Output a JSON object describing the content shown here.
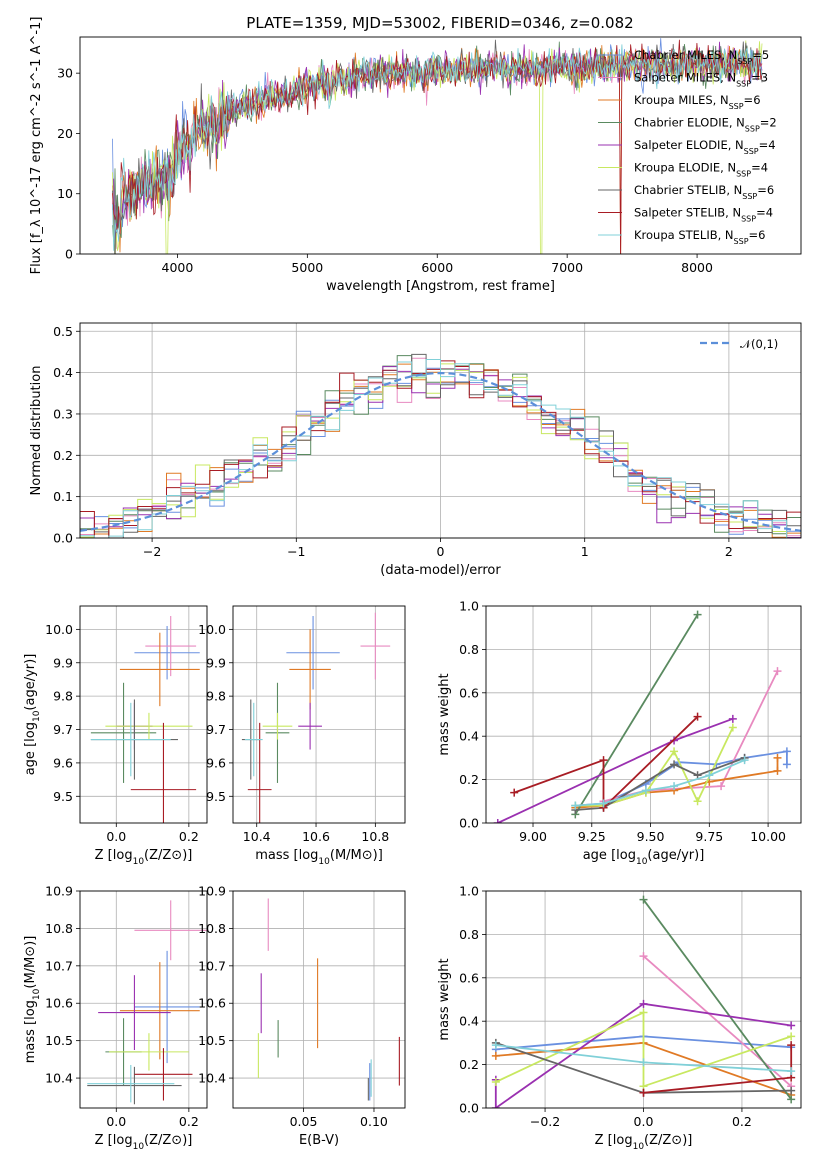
{
  "title": "PLATE=1359, MJD=53002, FIBERID=0346, z=0.082",
  "colors": {
    "Chabrier MILES": "#6a90e0",
    "Salpeter MILES": "#e88ac0",
    "Kroupa MILES": "#e07a25",
    "Chabrier ELODIE": "#5a8a60",
    "Salpeter ELODIE": "#9a30b0",
    "Kroupa ELODIE": "#c8e860",
    "Chabrier STELIB": "#666666",
    "Salpeter STELIB": "#a81c24",
    "Kroupa STELIB": "#80d0d8",
    "normal": "#5b8fd9"
  },
  "chart_data": [
    {
      "id": "spectrum",
      "type": "line",
      "xlabel": "wavelength [Angstrom, rest frame]",
      "ylabel": "Flux [f_λ 10^-17 erg cm^-2 s^-1 A^-1]",
      "xlim": [
        3250,
        8800
      ],
      "ylim": [
        0,
        36
      ],
      "xticks": [
        "4000",
        "5000",
        "6000",
        "7000",
        "8000"
      ],
      "yticks": [
        "0",
        "10",
        "20",
        "30"
      ],
      "legend_position": "top-right",
      "series": [
        {
          "name": "Chabrier MILES",
          "nssp": "5"
        },
        {
          "name": "Salpeter MILES",
          "nssp": "3"
        },
        {
          "name": "Kroupa MILES",
          "nssp": "6"
        },
        {
          "name": "Chabrier ELODIE",
          "nssp": "2"
        },
        {
          "name": "Salpeter ELODIE",
          "nssp": "4"
        },
        {
          "name": "Kroupa ELODIE",
          "nssp": "4"
        },
        {
          "name": "Chabrier STELIB",
          "nssp": "6"
        },
        {
          "name": "Salpeter STELIB",
          "nssp": "4"
        },
        {
          "name": "Kroupa STELIB",
          "nssp": "6"
        }
      ],
      "continuum": {
        "x": [
          3500,
          3700,
          3900,
          4000,
          4200,
          4400,
          4600,
          4800,
          5000,
          5200,
          5400,
          5600,
          5800,
          6000,
          6200,
          6400,
          6600,
          6800,
          7000,
          7200,
          7400,
          7600,
          7800,
          8000,
          8200,
          8400
        ],
        "y": [
          9,
          11,
          13,
          17,
          21,
          23.5,
          25,
          26.5,
          27.5,
          29,
          29.5,
          30,
          30,
          30.5,
          30.5,
          31,
          30.5,
          31,
          31,
          31,
          31.5,
          31.5,
          31.5,
          31.5,
          31.5,
          31.5
        ]
      }
    },
    {
      "id": "residuals",
      "type": "histogram",
      "xlabel": "(data-model)/error",
      "ylabel": "Normed distribution",
      "xlim": [
        -2.5,
        2.5
      ],
      "ylim": [
        0,
        0.52
      ],
      "xticks": [
        "−2",
        "−1",
        "0",
        "1",
        "2"
      ],
      "yticks": [
        "0.0",
        "0.1",
        "0.2",
        "0.3",
        "0.4",
        "0.5"
      ],
      "bin_width": 0.1,
      "reference": {
        "name": "𝒩(0,1)",
        "mu": 0,
        "sigma": 1
      },
      "legend_position": "top-right"
    },
    {
      "id": "age_vs_Z",
      "type": "errorbar",
      "xlabel": "Z [log10(Z/Z⊙)]",
      "ylabel": "age  [log10(age/yr)]",
      "xlim": [
        -0.1,
        0.25
      ],
      "ylim": [
        9.42,
        10.07
      ],
      "xticks": [
        "0.0",
        "0.2"
      ],
      "yticks": [
        "9.5",
        "9.6",
        "9.7",
        "9.8",
        "9.9",
        "10.0"
      ],
      "points": [
        {
          "model": "Chabrier MILES",
          "x": 0.14,
          "xerr": 0.09,
          "y": 9.93,
          "yerr": 0.08
        },
        {
          "model": "Salpeter MILES",
          "x": 0.15,
          "xerr": 0.07,
          "y": 9.95,
          "yerr": 0.09
        },
        {
          "model": "Kroupa MILES",
          "x": 0.12,
          "xerr": 0.11,
          "y": 9.88,
          "yerr": 0.11
        },
        {
          "model": "Chabrier ELODIE",
          "x": 0.02,
          "xerr": 0.09,
          "y": 9.69,
          "yerr": 0.15
        },
        {
          "model": "Salpeter ELODIE",
          "x": 0.05,
          "xerr": 0.05,
          "y": 9.71,
          "yerr": 0.07
        },
        {
          "model": "Kroupa ELODIE",
          "x": 0.09,
          "xerr": 0.12,
          "y": 9.71,
          "yerr": 0.04
        },
        {
          "model": "Chabrier STELIB",
          "x": 0.05,
          "xerr": 0.12,
          "y": 9.67,
          "yerr": 0.12
        },
        {
          "model": "Salpeter STELIB",
          "x": 0.13,
          "xerr": 0.09,
          "y": 9.52,
          "yerr": 0.2
        },
        {
          "model": "Kroupa STELIB",
          "x": 0.04,
          "xerr": 0.11,
          "y": 9.67,
          "yerr": 0.11
        }
      ]
    },
    {
      "id": "age_vs_mass",
      "type": "errorbar",
      "xlabel": "mass [log10(M/M⊙)]",
      "ylabel": "",
      "xlim": [
        10.32,
        10.9
      ],
      "ylim": [
        9.42,
        10.07
      ],
      "xticks": [
        "10.4",
        "10.6",
        "10.8"
      ],
      "yticks": [
        "9.5",
        "9.6",
        "9.7",
        "9.8",
        "9.9",
        "10.0"
      ],
      "points": [
        {
          "model": "Chabrier MILES",
          "x": 10.59,
          "xerr": 0.09,
          "y": 9.93,
          "yerr": 0.11
        },
        {
          "model": "Salpeter MILES",
          "x": 10.8,
          "xerr": 0.05,
          "y": 9.95,
          "yerr": 0.1
        },
        {
          "model": "Kroupa MILES",
          "x": 10.58,
          "xerr": 0.07,
          "y": 9.88,
          "yerr": 0.12
        },
        {
          "model": "Chabrier ELODIE",
          "x": 10.47,
          "xerr": 0.04,
          "y": 9.69,
          "yerr": 0.15
        },
        {
          "model": "Salpeter ELODIE",
          "x": 10.58,
          "xerr": 0.04,
          "y": 9.71,
          "yerr": 0.07
        },
        {
          "model": "Kroupa ELODIE",
          "x": 10.47,
          "xerr": 0.05,
          "y": 9.71,
          "yerr": 0.04
        },
        {
          "model": "Chabrier STELIB",
          "x": 10.38,
          "xerr": 0.03,
          "y": 9.67,
          "yerr": 0.12
        },
        {
          "model": "Salpeter STELIB",
          "x": 10.41,
          "xerr": 0.04,
          "y": 9.52,
          "yerr": 0.2
        },
        {
          "model": "Kroupa STELIB",
          "x": 10.39,
          "xerr": 0.03,
          "y": 9.67,
          "yerr": 0.11
        }
      ]
    },
    {
      "id": "weight_vs_age",
      "type": "line",
      "xlabel": "age  [log10(age/yr)]",
      "ylabel": "mass weight",
      "xlim": [
        8.8,
        10.14
      ],
      "ylim": [
        0,
        1
      ],
      "xticks": [
        "9.00",
        "9.25",
        "9.50",
        "9.75",
        "10.00"
      ],
      "yticks": [
        "0.0",
        "0.2",
        "0.4",
        "0.6",
        "0.8",
        "1.0"
      ],
      "series": [
        {
          "model": "Chabrier MILES",
          "x": [
            9.18,
            9.3,
            9.48,
            9.62,
            9.78,
            9.9,
            10.08,
            10.08
          ],
          "y": [
            0.08,
            0.09,
            0.18,
            0.28,
            0.27,
            0.3,
            0.33,
            0.27
          ]
        },
        {
          "model": "Salpeter MILES",
          "x": [
            9.3,
            9.48,
            9.8,
            10.04
          ],
          "y": [
            0.1,
            0.15,
            0.17,
            0.7
          ]
        },
        {
          "model": "Kroupa MILES",
          "x": [
            9.18,
            9.3,
            9.48,
            9.6,
            9.75,
            10.04,
            10.04
          ],
          "y": [
            0.07,
            0.08,
            0.14,
            0.15,
            0.19,
            0.24,
            0.3
          ]
        },
        {
          "model": "Chabrier ELODIE",
          "x": [
            9.18,
            9.7
          ],
          "y": [
            0.04,
            0.96
          ]
        },
        {
          "model": "Salpeter ELODIE",
          "x": [
            8.85,
            9.6,
            9.85
          ],
          "y": [
            0.0,
            0.38,
            0.48
          ]
        },
        {
          "model": "Kroupa ELODIE",
          "x": [
            9.18,
            9.3,
            9.48,
            9.6,
            9.7,
            9.85
          ],
          "y": [
            0.08,
            0.08,
            0.14,
            0.33,
            0.1,
            0.44
          ]
        },
        {
          "model": "Chabrier STELIB",
          "x": [
            9.18,
            9.3,
            9.6,
            9.7,
            9.9
          ],
          "y": [
            0.06,
            0.07,
            0.27,
            0.22,
            0.3
          ]
        },
        {
          "model": "Salpeter STELIB",
          "x": [
            8.92,
            9.3,
            9.3,
            9.7
          ],
          "y": [
            0.14,
            0.29,
            0.07,
            0.49
          ]
        },
        {
          "model": "Kroupa STELIB",
          "x": [
            9.18,
            9.3,
            9.48,
            9.6,
            9.75,
            9.9
          ],
          "y": [
            0.08,
            0.09,
            0.15,
            0.17,
            0.22,
            0.29
          ]
        }
      ]
    },
    {
      "id": "mass_vs_Z",
      "type": "errorbar",
      "xlabel": "Z [log10(Z/Z⊙)]",
      "ylabel": "mass [log10(M/M⊙)]",
      "xlim": [
        -0.1,
        0.25
      ],
      "ylim": [
        10.32,
        10.9
      ],
      "xticks": [
        "0.0",
        "0.2"
      ],
      "yticks": [
        "10.4",
        "10.5",
        "10.6",
        "10.7",
        "10.8",
        "10.9"
      ],
      "points": [
        {
          "model": "Chabrier MILES",
          "x": 0.14,
          "xerr": 0.09,
          "y": 10.59,
          "yerr": 0.15
        },
        {
          "model": "Salpeter MILES",
          "x": 0.15,
          "xerr": 0.1,
          "y": 10.795,
          "yerr": 0.08
        },
        {
          "model": "Kroupa MILES",
          "x": 0.12,
          "xerr": 0.11,
          "y": 10.58,
          "yerr": 0.13
        },
        {
          "model": "Chabrier ELODIE",
          "x": 0.02,
          "xerr": 0.05,
          "y": 10.47,
          "yerr": 0.09
        },
        {
          "model": "Salpeter ELODIE",
          "x": 0.05,
          "xerr": 0.1,
          "y": 10.575,
          "yerr": 0.1
        },
        {
          "model": "Kroupa ELODIE",
          "x": 0.09,
          "xerr": 0.11,
          "y": 10.47,
          "yerr": 0.05
        },
        {
          "model": "Chabrier STELIB",
          "x": 0.05,
          "xerr": 0.13,
          "y": 10.38,
          "yerr": 0.05
        },
        {
          "model": "Salpeter STELIB",
          "x": 0.13,
          "xerr": 0.08,
          "y": 10.41,
          "yerr": 0.07
        },
        {
          "model": "Kroupa STELIB",
          "x": 0.04,
          "xerr": 0.12,
          "y": 10.385,
          "yerr": 0.05
        }
      ]
    },
    {
      "id": "mass_vs_ebv",
      "type": "errorbar",
      "xlabel": "E(B-V)",
      "ylabel": "",
      "xlim": [
        0.0,
        0.122
      ],
      "ylim": [
        10.32,
        10.9
      ],
      "xticks": [
        "0.05",
        "0.10"
      ],
      "yticks": [
        "10.4",
        "10.5",
        "10.6",
        "10.7",
        "10.8",
        "10.9"
      ],
      "points": [
        {
          "model": "Chabrier MILES",
          "x": 0.097,
          "xerr": 0,
          "y": 10.39,
          "yerr": 0.05
        },
        {
          "model": "Salpeter MILES",
          "x": 0.025,
          "xerr": 0,
          "y": 10.81,
          "yerr": 0.07
        },
        {
          "model": "Kroupa MILES",
          "x": 0.06,
          "xerr": 0,
          "y": 10.6,
          "yerr": 0.12
        },
        {
          "model": "Chabrier ELODIE",
          "x": 0.032,
          "xerr": 0,
          "y": 10.505,
          "yerr": 0.05
        },
        {
          "model": "Salpeter ELODIE",
          "x": 0.02,
          "xerr": 0,
          "y": 10.6,
          "yerr": 0.08
        },
        {
          "model": "Kroupa ELODIE",
          "x": 0.018,
          "xerr": 0,
          "y": 10.46,
          "yerr": 0.06
        },
        {
          "model": "Chabrier STELIB",
          "x": 0.096,
          "xerr": 0,
          "y": 10.37,
          "yerr": 0.03
        },
        {
          "model": "Salpeter STELIB",
          "x": 0.118,
          "xerr": 0,
          "y": 10.445,
          "yerr": 0.065
        },
        {
          "model": "Kroupa STELIB",
          "x": 0.098,
          "xerr": 0,
          "y": 10.4,
          "yerr": 0.05
        }
      ]
    },
    {
      "id": "weight_vs_Z",
      "type": "line",
      "xlabel": "Z [log10(Z/Z⊙)]",
      "ylabel": "mass weight",
      "xlim": [
        -0.32,
        0.32
      ],
      "ylim": [
        0,
        1
      ],
      "xticks": [
        "−0.2",
        "0.0",
        "0.2"
      ],
      "yticks": [
        "0.0",
        "0.2",
        "0.4",
        "0.6",
        "0.8",
        "1.0"
      ],
      "series": [
        {
          "model": "Chabrier MILES",
          "x": [
            -0.3,
            0.0,
            0.3
          ],
          "y": [
            0.27,
            0.33,
            0.28
          ]
        },
        {
          "model": "Salpeter MILES",
          "x": [
            0.0,
            0.3
          ],
          "y": [
            0.7,
            0.1
          ]
        },
        {
          "model": "Kroupa MILES",
          "x": [
            -0.3,
            0.0,
            0.3
          ],
          "y": [
            0.24,
            0.3,
            0.06
          ]
        },
        {
          "model": "Chabrier ELODIE",
          "x": [
            0.0,
            0.3
          ],
          "y": [
            0.96,
            0.04
          ]
        },
        {
          "model": "Salpeter ELODIE",
          "x": [
            -0.3,
            -0.3,
            0.0,
            0.3
          ],
          "y": [
            0.13,
            0.0,
            0.48,
            0.38
          ]
        },
        {
          "model": "Kroupa ELODIE",
          "x": [
            -0.3,
            0.0,
            0.0,
            0.3
          ],
          "y": [
            0.12,
            0.44,
            0.1,
            0.33
          ]
        },
        {
          "model": "Chabrier STELIB",
          "x": [
            -0.3,
            0.0,
            0.3
          ],
          "y": [
            0.3,
            0.07,
            0.08
          ]
        },
        {
          "model": "Salpeter STELIB",
          "x": [
            0.0,
            0.3,
            0.3
          ],
          "y": [
            0.07,
            0.14,
            0.29
          ]
        },
        {
          "model": "Kroupa STELIB",
          "x": [
            -0.3,
            0.0,
            0.3
          ],
          "y": [
            0.29,
            0.21,
            0.17
          ]
        }
      ]
    }
  ]
}
